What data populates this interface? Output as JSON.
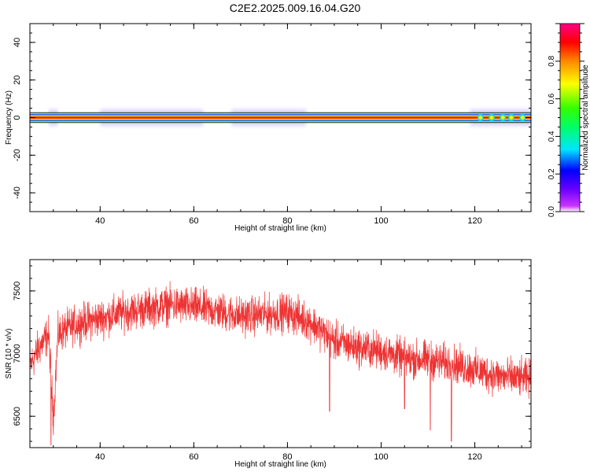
{
  "title": "C2E2.2025.009.16.04.G20",
  "chart_data": [
    {
      "type": "heatmap",
      "xlabel": "Height of straight line (km)",
      "ylabel": "Frequency (Hz)",
      "xlim": [
        25,
        132
      ],
      "ylim": [
        -50,
        50
      ],
      "xticks": [
        40,
        60,
        80,
        100,
        120
      ],
      "yticks": [
        -40,
        -20,
        0,
        20,
        40
      ],
      "colorbar": {
        "label": "Normalized spectral amplitude",
        "range": [
          0,
          1
        ],
        "ticks": [
          0.0,
          0.2,
          0.4,
          0.6,
          0.8
        ],
        "colormap": "hsv-rainbow"
      },
      "band_center_hz": 0,
      "band_halfwidth_hz": 1.5,
      "wide_halo_regions_km": [
        [
          29,
          31
        ],
        [
          40,
          62
        ],
        [
          68,
          84
        ],
        [
          119,
          132
        ]
      ]
    },
    {
      "type": "line",
      "xlabel": "Height of straight line (km)",
      "ylabel": "SNR (10 * v/v)",
      "xlim": [
        25,
        132
      ],
      "ylim": [
        6250,
        7750
      ],
      "xticks": [
        40,
        60,
        80,
        100,
        120
      ],
      "yticks": [
        6500,
        7000,
        7500
      ],
      "color": "#ee3333",
      "series": [
        {
          "x": [
            25,
            27,
            29,
            30,
            31,
            33,
            36,
            40,
            45,
            50,
            55,
            60,
            65,
            70,
            75,
            80,
            85,
            90,
            95,
            100,
            105,
            110,
            115,
            120,
            125,
            130,
            132
          ],
          "y": [
            6900,
            7050,
            7150,
            6500,
            7150,
            7200,
            7250,
            7280,
            7330,
            7360,
            7390,
            7370,
            7340,
            7300,
            7310,
            7330,
            7250,
            7100,
            7050,
            7020,
            6960,
            6950,
            6920,
            6870,
            6820,
            6800,
            6800
          ]
        }
      ],
      "noise_amplitude": 220,
      "dips": [
        [
          29.5,
          6270
        ],
        [
          30.2,
          6500
        ],
        [
          105,
          6560
        ],
        [
          115,
          6300
        ],
        [
          110.5,
          6390
        ],
        [
          89,
          6540
        ]
      ]
    }
  ]
}
